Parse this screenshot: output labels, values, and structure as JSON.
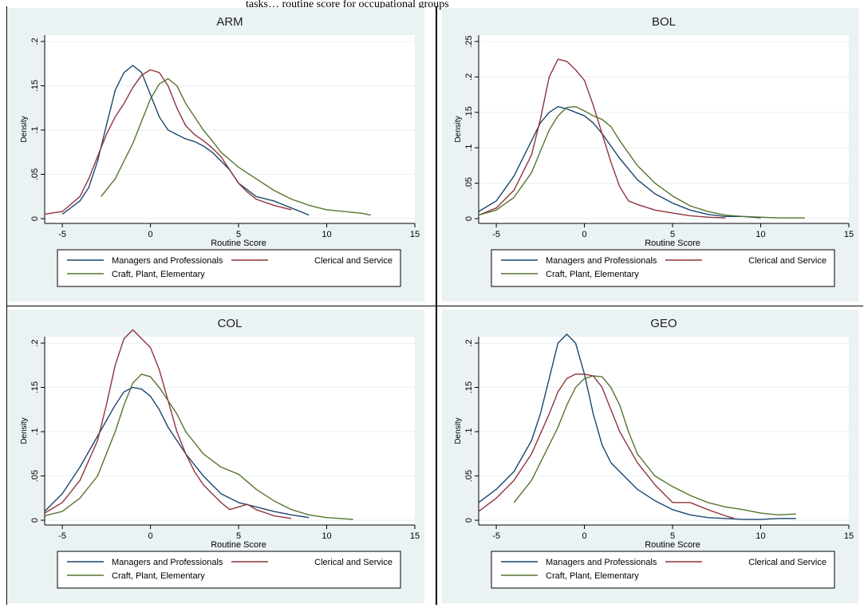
{
  "page": {
    "top_clipped_text": "tasks… routine score for occupational groups"
  },
  "colors": {
    "panel_bg": "#eaf2f3",
    "plot_bg": "#ffffff",
    "grid": "#eaf2f3",
    "managers": "#1a476f",
    "clerical": "#90353b",
    "craft": "#55752f"
  },
  "chart_data": [
    {
      "type": "line",
      "title": "ARM",
      "xlabel": "Routine Score",
      "ylabel": "Density",
      "xlim": [
        -6,
        15
      ],
      "ylim": [
        0,
        0.2
      ],
      "xticks": [
        -5,
        0,
        5,
        10,
        15
      ],
      "yticks": [
        0,
        0.05,
        0.1,
        0.15,
        0.2
      ],
      "ytick_labels": [
        "0",
        ".05",
        ".1",
        ".15",
        ".2"
      ],
      "grid": true,
      "legend_position": "bottom",
      "series": [
        {
          "name": "Managers and Professionals",
          "x": [
            -5.0,
            -4.0,
            -3.5,
            -3.0,
            -2.5,
            -2.0,
            -1.5,
            -1.0,
            -0.5,
            0.0,
            0.5,
            1.0,
            1.5,
            2.0,
            2.5,
            3.0,
            3.5,
            4.0,
            4.5,
            5.0,
            6.0,
            7.0,
            8.0,
            9.0
          ],
          "y": [
            0.005,
            0.02,
            0.035,
            0.065,
            0.105,
            0.145,
            0.165,
            0.173,
            0.165,
            0.14,
            0.115,
            0.1,
            0.095,
            0.09,
            0.087,
            0.082,
            0.075,
            0.065,
            0.055,
            0.04,
            0.025,
            0.02,
            0.012,
            0.004
          ]
        },
        {
          "name": "Clerical and Service",
          "x": [
            -6.0,
            -5.0,
            -4.0,
            -3.5,
            -3.0,
            -2.5,
            -2.0,
            -1.5,
            -1.0,
            -0.5,
            0.0,
            0.5,
            1.0,
            1.5,
            2.0,
            2.5,
            3.0,
            3.5,
            4.0,
            4.5,
            5.0,
            5.5,
            6.0,
            7.0,
            8.0
          ],
          "y": [
            0.005,
            0.008,
            0.025,
            0.045,
            0.07,
            0.095,
            0.115,
            0.13,
            0.148,
            0.162,
            0.168,
            0.165,
            0.15,
            0.125,
            0.105,
            0.095,
            0.088,
            0.08,
            0.07,
            0.055,
            0.04,
            0.03,
            0.022,
            0.015,
            0.01
          ]
        },
        {
          "name": "Craft, Plant, Elementary",
          "x": [
            -2.8,
            -2.0,
            -1.5,
            -1.0,
            -0.5,
            0.0,
            0.5,
            1.0,
            1.5,
            2.0,
            2.5,
            3.0,
            3.5,
            4.0,
            5.0,
            6.0,
            7.0,
            8.0,
            9.0,
            10.0,
            11.0,
            12.0,
            12.5
          ],
          "y": [
            0.025,
            0.045,
            0.065,
            0.085,
            0.11,
            0.135,
            0.152,
            0.158,
            0.15,
            0.13,
            0.115,
            0.1,
            0.088,
            0.075,
            0.058,
            0.045,
            0.032,
            0.022,
            0.015,
            0.01,
            0.008,
            0.006,
            0.004
          ]
        }
      ]
    },
    {
      "type": "line",
      "title": "BOL",
      "xlabel": "Routine Score",
      "ylabel": "Density",
      "xlim": [
        -6,
        15
      ],
      "ylim": [
        0,
        0.25
      ],
      "xticks": [
        -5,
        0,
        5,
        10,
        15
      ],
      "yticks": [
        0,
        0.05,
        0.1,
        0.15,
        0.2,
        0.25
      ],
      "ytick_labels": [
        "0",
        ".05",
        ".1",
        ".15",
        ".2",
        ".25"
      ],
      "grid": true,
      "legend_position": "bottom",
      "series": [
        {
          "name": "Managers and Professionals",
          "x": [
            -6.0,
            -5.0,
            -4.0,
            -3.0,
            -2.5,
            -2.0,
            -1.5,
            -1.0,
            -0.5,
            0.0,
            0.5,
            1.0,
            2.0,
            3.0,
            4.0,
            5.0,
            6.0,
            7.0,
            8.0,
            9.0,
            10.0
          ],
          "y": [
            0.01,
            0.025,
            0.06,
            0.11,
            0.135,
            0.15,
            0.158,
            0.155,
            0.15,
            0.145,
            0.135,
            0.12,
            0.085,
            0.055,
            0.035,
            0.022,
            0.012,
            0.006,
            0.003,
            0.003,
            0.001
          ]
        },
        {
          "name": "Clerical and Service",
          "x": [
            -6.0,
            -5.0,
            -4.0,
            -3.0,
            -2.5,
            -2.0,
            -1.5,
            -1.0,
            -0.5,
            0.0,
            0.5,
            1.0,
            1.5,
            2.0,
            2.5,
            3.0,
            4.0,
            5.0,
            6.0,
            7.0,
            8.0
          ],
          "y": [
            0.005,
            0.015,
            0.04,
            0.09,
            0.14,
            0.2,
            0.225,
            0.222,
            0.21,
            0.195,
            0.16,
            0.12,
            0.08,
            0.045,
            0.025,
            0.02,
            0.012,
            0.008,
            0.004,
            0.002,
            0.001
          ]
        },
        {
          "name": "Craft, Plant, Elementary",
          "x": [
            -6.0,
            -5.0,
            -4.0,
            -3.0,
            -2.5,
            -2.0,
            -1.5,
            -1.0,
            -0.5,
            0.0,
            0.5,
            1.0,
            1.5,
            2.0,
            3.0,
            4.0,
            5.0,
            6.0,
            7.0,
            8.0,
            9.0,
            10.0,
            11.0,
            12.5
          ],
          "y": [
            0.005,
            0.012,
            0.03,
            0.065,
            0.095,
            0.125,
            0.145,
            0.157,
            0.158,
            0.152,
            0.145,
            0.14,
            0.13,
            0.11,
            0.075,
            0.05,
            0.032,
            0.018,
            0.01,
            0.005,
            0.003,
            0.002,
            0.001,
            0.001
          ]
        }
      ]
    },
    {
      "type": "line",
      "title": "COL",
      "xlabel": "Routine Score",
      "ylabel": "Density",
      "xlim": [
        -6,
        15
      ],
      "ylim": [
        0,
        0.2
      ],
      "xticks": [
        -5,
        0,
        5,
        10,
        15
      ],
      "yticks": [
        0,
        0.05,
        0.1,
        0.15,
        0.2
      ],
      "ytick_labels": [
        "0",
        ".05",
        ".1",
        ".15",
        ".2"
      ],
      "grid": true,
      "legend_position": "bottom",
      "series": [
        {
          "name": "Managers and Professionals",
          "x": [
            -6.0,
            -5.0,
            -4.0,
            -3.0,
            -2.0,
            -1.5,
            -1.0,
            -0.5,
            0.0,
            0.5,
            1.0,
            2.0,
            3.0,
            4.0,
            5.0,
            6.0,
            7.0,
            8.0,
            9.0
          ],
          "y": [
            0.01,
            0.03,
            0.06,
            0.095,
            0.13,
            0.145,
            0.15,
            0.148,
            0.14,
            0.125,
            0.105,
            0.075,
            0.05,
            0.03,
            0.02,
            0.015,
            0.01,
            0.006,
            0.003
          ]
        },
        {
          "name": "Clerical and Service",
          "x": [
            -6.0,
            -5.0,
            -4.0,
            -3.0,
            -2.5,
            -2.0,
            -1.5,
            -1.0,
            -0.5,
            0.0,
            0.5,
            1.0,
            1.5,
            2.0,
            2.5,
            3.0,
            3.5,
            4.0,
            4.5,
            5.0,
            5.5,
            6.0,
            7.0,
            8.0
          ],
          "y": [
            0.008,
            0.02,
            0.045,
            0.09,
            0.13,
            0.175,
            0.205,
            0.215,
            0.205,
            0.195,
            0.17,
            0.135,
            0.1,
            0.075,
            0.055,
            0.04,
            0.03,
            0.02,
            0.012,
            0.015,
            0.018,
            0.012,
            0.005,
            0.002
          ]
        },
        {
          "name": "Craft, Plant, Elementary",
          "x": [
            -6.0,
            -5.0,
            -4.0,
            -3.0,
            -2.0,
            -1.5,
            -1.0,
            -0.5,
            0.0,
            0.5,
            1.0,
            1.5,
            2.0,
            3.0,
            4.0,
            5.0,
            6.0,
            7.0,
            8.0,
            9.0,
            10.0,
            11.5
          ],
          "y": [
            0.005,
            0.01,
            0.025,
            0.05,
            0.1,
            0.13,
            0.155,
            0.165,
            0.162,
            0.15,
            0.135,
            0.12,
            0.1,
            0.075,
            0.06,
            0.052,
            0.035,
            0.022,
            0.012,
            0.006,
            0.003,
            0.001
          ]
        }
      ]
    },
    {
      "type": "line",
      "title": "GEO",
      "xlabel": "Routine Score",
      "ylabel": "Density",
      "xlim": [
        -6,
        15
      ],
      "ylim": [
        0,
        0.2
      ],
      "xticks": [
        -5,
        0,
        5,
        10,
        15
      ],
      "yticks": [
        0,
        0.05,
        0.1,
        0.15,
        0.2
      ],
      "ytick_labels": [
        "0",
        ".05",
        ".1",
        ".15",
        ".2"
      ],
      "grid": true,
      "legend_position": "bottom",
      "series": [
        {
          "name": "Managers and Professionals",
          "x": [
            -6.0,
            -5.0,
            -4.0,
            -3.0,
            -2.5,
            -2.0,
            -1.5,
            -1.0,
            -0.5,
            0.0,
            0.5,
            1.0,
            1.5,
            2.0,
            3.0,
            4.0,
            5.0,
            6.0,
            7.0,
            8.0,
            9.0,
            10.0,
            11.0,
            12.0
          ],
          "y": [
            0.02,
            0.035,
            0.055,
            0.09,
            0.12,
            0.16,
            0.2,
            0.21,
            0.2,
            0.165,
            0.12,
            0.085,
            0.065,
            0.055,
            0.035,
            0.022,
            0.012,
            0.006,
            0.003,
            0.002,
            0.001,
            0.001,
            0.002,
            0.002
          ]
        },
        {
          "name": "Clerical and Service",
          "x": [
            -6.0,
            -5.0,
            -4.0,
            -3.0,
            -2.0,
            -1.5,
            -1.0,
            -0.5,
            0.0,
            0.5,
            1.0,
            1.5,
            2.0,
            3.0,
            4.0,
            5.0,
            6.0,
            7.0,
            8.0,
            8.5
          ],
          "y": [
            0.01,
            0.025,
            0.045,
            0.075,
            0.12,
            0.145,
            0.16,
            0.165,
            0.165,
            0.163,
            0.15,
            0.125,
            0.1,
            0.065,
            0.04,
            0.02,
            0.02,
            0.012,
            0.005,
            0.002
          ]
        },
        {
          "name": "Craft, Plant, Elementary",
          "x": [
            -4.0,
            -3.0,
            -2.0,
            -1.5,
            -1.0,
            -0.5,
            0.0,
            0.5,
            1.0,
            1.5,
            2.0,
            2.5,
            3.0,
            4.0,
            5.0,
            6.0,
            7.0,
            8.0,
            9.0,
            10.0,
            11.0,
            12.0
          ],
          "y": [
            0.02,
            0.045,
            0.085,
            0.105,
            0.13,
            0.15,
            0.16,
            0.163,
            0.162,
            0.15,
            0.13,
            0.1,
            0.075,
            0.05,
            0.038,
            0.028,
            0.02,
            0.015,
            0.012,
            0.008,
            0.006,
            0.007
          ]
        }
      ]
    }
  ]
}
